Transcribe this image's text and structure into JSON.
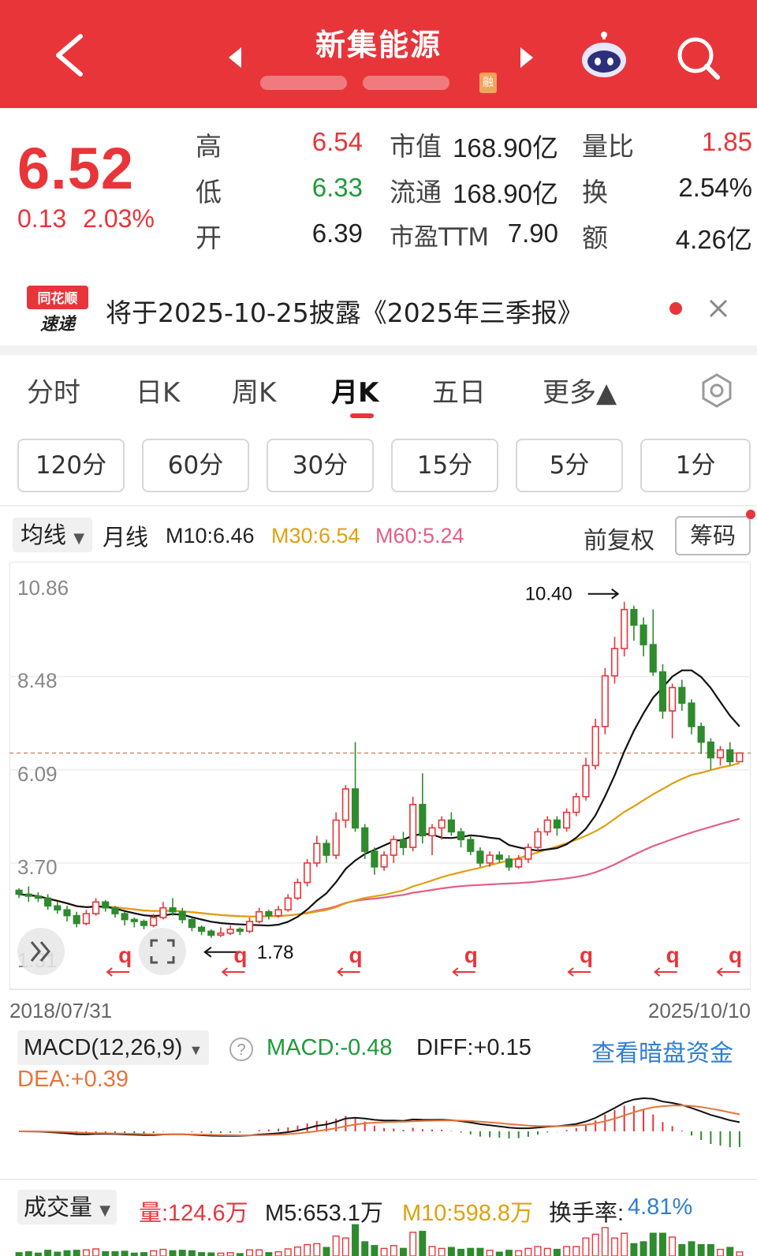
{
  "header": {
    "title": "新集能源",
    "tag": "融",
    "colors": {
      "bg": "#e8353a"
    }
  },
  "quote": {
    "price": "6.52",
    "change": "0.13",
    "change_pct": "2.03%",
    "high_label": "高",
    "high": "6.54",
    "low_label": "低",
    "low": "6.33",
    "open_label": "开",
    "open": "6.39",
    "mktcap_label": "市值",
    "mktcap": "168.90亿",
    "float_label": "流通",
    "float": "168.90亿",
    "pe_label": "市盈TTM",
    "pe": "7.90",
    "volratio_label": "量比",
    "volratio": "1.85",
    "turnover_label": "换",
    "turnover": "2.54%",
    "amount_label": "额",
    "amount": "4.26亿"
  },
  "notice": {
    "logo_top": "同花顺",
    "logo_bottom": "速递",
    "text": "将于2025-10-25披露《2025年三季报》"
  },
  "tabs": [
    {
      "label": "分时"
    },
    {
      "label": "日K"
    },
    {
      "label": "周K"
    },
    {
      "label": "月K",
      "active": true
    },
    {
      "label": "五日"
    },
    {
      "label": "更多▲"
    }
  ],
  "minute_buttons": [
    "120分",
    "60分",
    "30分",
    "15分",
    "5分",
    "1分"
  ],
  "ma": {
    "select": "均线",
    "period": "月线",
    "m10": "M10:6.46",
    "m30": "M30:6.54",
    "m60": "M60:5.24",
    "adjust": "前复权",
    "chips": "筹码"
  },
  "chart_data": {
    "type": "candlestick",
    "y_ticks": [
      "10.86",
      "8.48",
      "6.09",
      "3.70",
      "1.31"
    ],
    "ylim": [
      1.31,
      10.86
    ],
    "x_start": "2018/07/31",
    "x_end": "2025/10/10",
    "annotations": {
      "high": "10.40",
      "low": "1.78"
    },
    "marker_letter": "q",
    "current_price": 6.52,
    "candles": [
      [
        3.0,
        2.9,
        3.05,
        2.8
      ],
      [
        2.9,
        2.85,
        3.1,
        2.7
      ],
      [
        2.85,
        2.8,
        2.95,
        2.7
      ],
      [
        2.8,
        2.6,
        2.9,
        2.5
      ],
      [
        2.6,
        2.5,
        2.7,
        2.4
      ],
      [
        2.5,
        2.35,
        2.6,
        2.2
      ],
      [
        2.35,
        2.15,
        2.45,
        2.05
      ],
      [
        2.15,
        2.4,
        2.5,
        2.1
      ],
      [
        2.4,
        2.7,
        2.8,
        2.35
      ],
      [
        2.7,
        2.55,
        2.75,
        2.45
      ],
      [
        2.55,
        2.4,
        2.6,
        2.3
      ],
      [
        2.4,
        2.25,
        2.45,
        2.1
      ],
      [
        2.25,
        2.2,
        2.3,
        2.05
      ],
      [
        2.2,
        2.1,
        2.25,
        2.0
      ],
      [
        2.1,
        2.3,
        2.4,
        2.05
      ],
      [
        2.3,
        2.55,
        2.7,
        2.25
      ],
      [
        2.55,
        2.45,
        2.8,
        2.35
      ],
      [
        2.45,
        2.25,
        2.55,
        2.15
      ],
      [
        2.25,
        2.05,
        2.3,
        1.95
      ],
      [
        2.05,
        1.95,
        2.1,
        1.85
      ],
      [
        1.95,
        1.85,
        2.0,
        1.78
      ],
      [
        1.85,
        1.9,
        2.05,
        1.8
      ],
      [
        1.9,
        2.0,
        2.1,
        1.85
      ],
      [
        2.0,
        1.95,
        2.05,
        1.85
      ],
      [
        1.95,
        2.2,
        2.3,
        1.9
      ],
      [
        2.2,
        2.45,
        2.55,
        2.15
      ],
      [
        2.45,
        2.35,
        2.5,
        2.25
      ],
      [
        2.35,
        2.5,
        2.6,
        2.3
      ],
      [
        2.5,
        2.8,
        2.9,
        2.45
      ],
      [
        2.8,
        3.2,
        3.3,
        2.75
      ],
      [
        3.2,
        3.7,
        3.8,
        3.1
      ],
      [
        3.7,
        4.2,
        4.4,
        3.6
      ],
      [
        4.2,
        3.9,
        4.3,
        3.7
      ],
      [
        3.9,
        4.8,
        5.0,
        3.8
      ],
      [
        4.8,
        5.6,
        5.7,
        4.6
      ],
      [
        5.6,
        4.6,
        6.8,
        4.5
      ],
      [
        4.6,
        4.0,
        4.7,
        3.8
      ],
      [
        4.0,
        3.6,
        4.1,
        3.4
      ],
      [
        3.6,
        3.9,
        4.0,
        3.5
      ],
      [
        3.9,
        4.3,
        4.4,
        3.7
      ],
      [
        4.3,
        4.1,
        4.5,
        3.9
      ],
      [
        4.1,
        5.2,
        5.4,
        4.0
      ],
      [
        5.2,
        4.4,
        6.0,
        4.2
      ],
      [
        4.4,
        4.6,
        4.7,
        3.9
      ],
      [
        4.6,
        4.8,
        4.9,
        4.3
      ],
      [
        4.8,
        4.5,
        5.0,
        4.4
      ],
      [
        4.5,
        4.3,
        4.6,
        4.1
      ],
      [
        4.3,
        4.0,
        4.4,
        3.9
      ],
      [
        4.0,
        3.7,
        4.1,
        3.6
      ],
      [
        3.7,
        3.9,
        4.0,
        3.6
      ],
      [
        3.9,
        3.8,
        4.0,
        3.7
      ],
      [
        3.8,
        3.6,
        3.9,
        3.5
      ],
      [
        3.6,
        3.8,
        3.9,
        3.55
      ],
      [
        3.8,
        4.1,
        4.2,
        3.7
      ],
      [
        4.1,
        4.5,
        4.6,
        4.0
      ],
      [
        4.5,
        4.8,
        4.9,
        4.4
      ],
      [
        4.8,
        4.6,
        4.9,
        4.4
      ],
      [
        4.6,
        5.0,
        5.1,
        4.5
      ],
      [
        5.0,
        5.4,
        5.5,
        4.9
      ],
      [
        5.4,
        6.2,
        6.4,
        5.3
      ],
      [
        6.2,
        7.2,
        7.4,
        6.1
      ],
      [
        7.2,
        8.5,
        8.7,
        7.0
      ],
      [
        8.5,
        9.2,
        9.5,
        8.3
      ],
      [
        9.2,
        10.2,
        10.4,
        9.0
      ],
      [
        10.2,
        9.8,
        10.3,
        9.4
      ],
      [
        9.8,
        9.3,
        10.0,
        9.0
      ],
      [
        9.3,
        8.6,
        10.2,
        8.5
      ],
      [
        8.6,
        7.6,
        8.8,
        7.4
      ],
      [
        7.6,
        8.2,
        8.3,
        6.9
      ],
      [
        8.2,
        7.8,
        8.4,
        7.6
      ],
      [
        7.8,
        7.2,
        7.9,
        7.0
      ],
      [
        7.2,
        6.8,
        7.3,
        6.5
      ],
      [
        6.8,
        6.4,
        6.9,
        6.1
      ],
      [
        6.4,
        6.6,
        6.7,
        6.2
      ],
      [
        6.6,
        6.3,
        6.8,
        6.2
      ],
      [
        6.3,
        6.52,
        6.54,
        6.33
      ]
    ]
  },
  "macd": {
    "select": "MACD(12,26,9)",
    "help": "?",
    "macd": "MACD:-0.48",
    "diff": "DIFF:+0.15",
    "dea": "DEA:+0.39",
    "link": "查看暗盘资金"
  },
  "volume": {
    "select": "成交量",
    "vol": "量:124.6万",
    "m5": "M5:653.1万",
    "m10": "M10:598.8万",
    "turnover_label": "换手率:",
    "turnover": "4.81%"
  }
}
